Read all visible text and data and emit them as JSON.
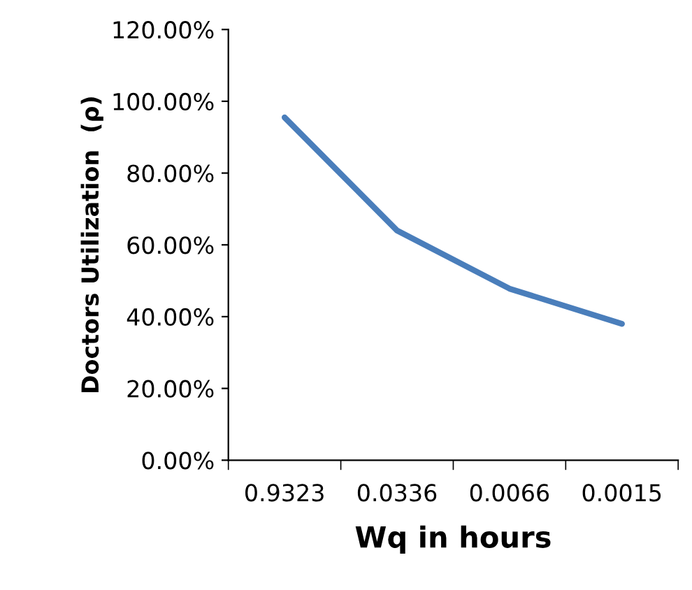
{
  "chart_data": {
    "type": "line",
    "xlabel": "Wq in hours",
    "ylabel": "Doctors Utilization  (ρ)",
    "categories": [
      "0.9323",
      "0.0336",
      "0.0066",
      "0.0015"
    ],
    "series": [
      {
        "color": "#4a7ebb",
        "values": [
          95.5,
          64,
          47.8,
          38
        ]
      }
    ],
    "ylim": [
      0,
      120
    ],
    "yticks": [
      {
        "value": 0,
        "label": "0.00%"
      },
      {
        "value": 20,
        "label": "20.00%"
      },
      {
        "value": 40,
        "label": "40.00%"
      },
      {
        "value": 60,
        "label": "60.00%"
      },
      {
        "value": 80,
        "label": "80.00%"
      },
      {
        "value": 100,
        "label": "100.00%"
      },
      {
        "value": 120,
        "label": "120.00%"
      }
    ],
    "grid": false,
    "legend": false,
    "marker": "none",
    "line_style": "solid"
  }
}
